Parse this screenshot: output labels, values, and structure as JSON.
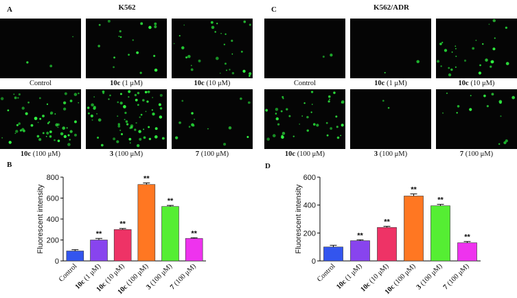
{
  "panels": [
    {
      "letter": "A",
      "title": "K562",
      "images": [
        {
          "label": "Control"
        },
        {
          "compound": "10c",
          "condition": "(1 μM)"
        },
        {
          "compound": "10c",
          "condition": "(10 μM)"
        },
        {
          "compound": "10c",
          "condition": "(100 μM)"
        },
        {
          "compound": "3",
          "condition": "(100 μM)"
        },
        {
          "compound": "7",
          "condition": "(100 μM)"
        }
      ]
    },
    {
      "letter": "C",
      "title": "K562/ADR",
      "images": [
        {
          "label": "Control"
        },
        {
          "compound": "10c",
          "condition": "(1 μM)"
        },
        {
          "compound": "10c",
          "condition": "(10 μM)"
        },
        {
          "compound": "10c",
          "condition": "(100 μM)"
        },
        {
          "compound": "3",
          "condition": "(100 μM)"
        },
        {
          "compound": "7",
          "condition": "(100 μM)"
        }
      ]
    }
  ],
  "chart_data": [
    {
      "type": "bar",
      "letter": "B",
      "y_label": "Fluorescent intensity",
      "categories": [
        "Control",
        "10c (1 μM)",
        "10c (10 μM)",
        "10c (100 μM)",
        "3 (100 μM)",
        "7 (100 μM)"
      ],
      "values": [
        95,
        200,
        300,
        730,
        520,
        215
      ],
      "errors": [
        12,
        15,
        10,
        15,
        10,
        6
      ],
      "colors": [
        "#3355ee",
        "#8844ee",
        "#ee3366",
        "#ff7722",
        "#55ee33",
        "#ee33ee"
      ],
      "annotations": [
        null,
        "**",
        "**",
        "**",
        "**",
        "**"
      ],
      "ylim": [
        0,
        800
      ],
      "yticks": [
        0,
        200,
        400,
        600,
        800
      ]
    },
    {
      "type": "bar",
      "letter": "D",
      "y_label": "Fluorescent intensity",
      "categories": [
        "Control",
        "10c (1 μM)",
        "10c (10 μM)",
        "10c (100 μM)",
        "3 (100 μM)",
        "7 (100 μM)"
      ],
      "values": [
        100,
        145,
        240,
        465,
        395,
        130
      ],
      "errors": [
        12,
        6,
        8,
        15,
        10,
        9
      ],
      "colors": [
        "#3355ee",
        "#8844ee",
        "#ee3366",
        "#ff7722",
        "#55ee33",
        "#ee33ee"
      ],
      "annotations": [
        null,
        "**",
        "**",
        "**",
        "**",
        "**"
      ],
      "ylim": [
        0,
        600
      ],
      "yticks": [
        0,
        200,
        400,
        600
      ]
    }
  ]
}
